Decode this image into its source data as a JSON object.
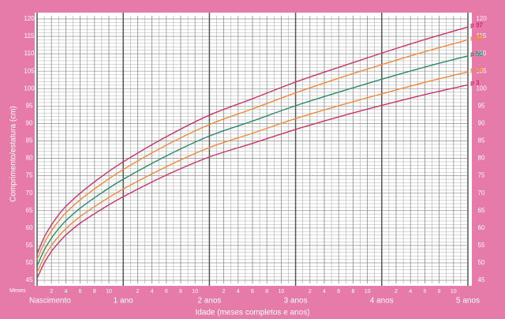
{
  "chart_data": {
    "type": "line",
    "y_label": "Comprimento/estatura (cm)",
    "x_label": "Idade (meses completos e anos)",
    "x_unit_label": "Meses",
    "x": [
      0,
      1,
      2,
      3,
      4,
      6,
      9,
      12,
      18,
      24,
      30,
      36,
      42,
      48,
      54,
      60
    ],
    "series": [
      {
        "name": "p 97",
        "color": "#c8336a",
        "values": [
          52.6,
          57.4,
          60.9,
          63.8,
          66.2,
          70.0,
          74.8,
          79.0,
          86.2,
          92.4,
          97.1,
          101.9,
          106.1,
          110.2,
          114.1,
          117.7
        ]
      },
      {
        "name": "p 85",
        "color": "#ee8a3a",
        "values": [
          51.0,
          55.7,
          59.2,
          62.0,
          64.4,
          68.1,
          72.7,
          76.8,
          83.8,
          89.7,
          94.2,
          98.8,
          103.0,
          106.9,
          110.6,
          114.0
        ]
      },
      {
        "name": "p 50",
        "color": "#2a8a6a",
        "values": [
          49.1,
          53.7,
          57.1,
          59.8,
          62.1,
          65.7,
          70.1,
          74.0,
          80.7,
          86.4,
          90.7,
          95.1,
          99.0,
          102.7,
          106.2,
          109.4
        ]
      },
      {
        "name": "p 15",
        "color": "#ee8a3a",
        "values": [
          47.2,
          51.7,
          55.0,
          57.6,
          59.8,
          63.3,
          67.5,
          71.2,
          77.6,
          83.1,
          87.2,
          91.4,
          95.1,
          98.5,
          101.8,
          104.8
        ]
      },
      {
        "name": "p 3",
        "color": "#c8336a",
        "values": [
          45.6,
          50.0,
          53.3,
          55.8,
          58.0,
          61.4,
          65.4,
          69.0,
          75.2,
          80.4,
          84.3,
          88.3,
          91.9,
          95.2,
          98.3,
          101.1
        ]
      }
    ],
    "xlim": [
      0,
      60
    ],
    "ylim": [
      45,
      120
    ],
    "yticks": [
      45,
      50,
      55,
      60,
      65,
      70,
      75,
      80,
      85,
      90,
      95,
      100,
      105,
      110,
      115,
      120
    ],
    "xticks": [
      2,
      4,
      6,
      8,
      10,
      {
        "value": 14,
        "label": "2"
      },
      {
        "value": 16,
        "label": "4"
      },
      {
        "value": 18,
        "label": "6"
      },
      {
        "value": 20,
        "label": "8"
      },
      {
        "value": 22,
        "label": "10"
      },
      {
        "value": 26,
        "label": "2"
      },
      {
        "value": 28,
        "label": "4"
      },
      {
        "value": 30,
        "label": "6"
      },
      {
        "value": 32,
        "label": "8"
      },
      {
        "value": 34,
        "label": "10"
      },
      {
        "value": 38,
        "label": "2"
      },
      {
        "value": 40,
        "label": "4"
      },
      {
        "value": 42,
        "label": "6"
      },
      {
        "value": 44,
        "label": "8"
      },
      {
        "value": 46,
        "label": "10"
      },
      {
        "value": 50,
        "label": "2"
      },
      {
        "value": 52,
        "label": "4"
      },
      {
        "value": 54,
        "label": "6"
      },
      {
        "value": 56,
        "label": "8"
      },
      {
        "value": 58,
        "label": "10"
      }
    ],
    "xticks_major": [
      {
        "value": 0,
        "label": "Nascimento"
      },
      {
        "value": 12,
        "label": "1 ano"
      },
      {
        "value": 24,
        "label": "2 anos"
      },
      {
        "value": 36,
        "label": "3 anos"
      },
      {
        "value": 48,
        "label": "4 anos"
      },
      {
        "value": 60,
        "label": "5 anos"
      }
    ],
    "grid": true
  }
}
